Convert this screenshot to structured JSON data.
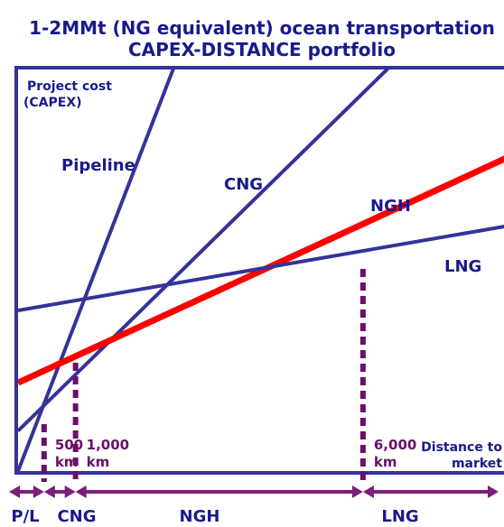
{
  "chart_data": {
    "type": "line",
    "title": [
      "1-2MMt (NG equivalent) ocean transportation",
      "CAPEX-DISTANCE portfolio"
    ],
    "ylabel": [
      "Project cost",
      "(CAPEX)"
    ],
    "xlabel": [
      "Distance to",
      "market"
    ],
    "xlim": [
      0,
      8500
    ],
    "ylim": [
      0,
      100
    ],
    "series": [
      {
        "name": "Pipeline",
        "color": "#333399",
        "x": [
          0,
          2750
        ],
        "y": [
          0,
          102
        ]
      },
      {
        "name": "CNG",
        "color": "#333399",
        "x": [
          0,
          6560
        ],
        "y": [
          10,
          102
        ]
      },
      {
        "name": "NGH",
        "color": "#ff0000",
        "x": [
          0,
          8500
        ],
        "y": [
          22,
          78
        ]
      },
      {
        "name": "LNG",
        "color": "#333399",
        "x": [
          0,
          8500
        ],
        "y": [
          40,
          61
        ]
      }
    ],
    "breakevens": [
      {
        "x": 500,
        "line1": "500",
        "line2": "km"
      },
      {
        "x": 1000,
        "line1": "1,000",
        "line2": "km"
      },
      {
        "x": 6000,
        "line1": "6,000",
        "line2": "km"
      }
    ],
    "regions": [
      {
        "label": "P/L",
        "from": 0,
        "to": 500
      },
      {
        "label": "CNG",
        "from": 500,
        "to": 1000
      },
      {
        "label": "NGH",
        "from": 1000,
        "to": 6000
      },
      {
        "label": "LNG",
        "from": 6000,
        "to": 8500
      }
    ]
  },
  "colors": {
    "title": "#1a1a8c",
    "axis": "#333399",
    "dotted": "#6b0f6b",
    "arrow": "#7a1f7a",
    "ngh": "#ff0000"
  }
}
